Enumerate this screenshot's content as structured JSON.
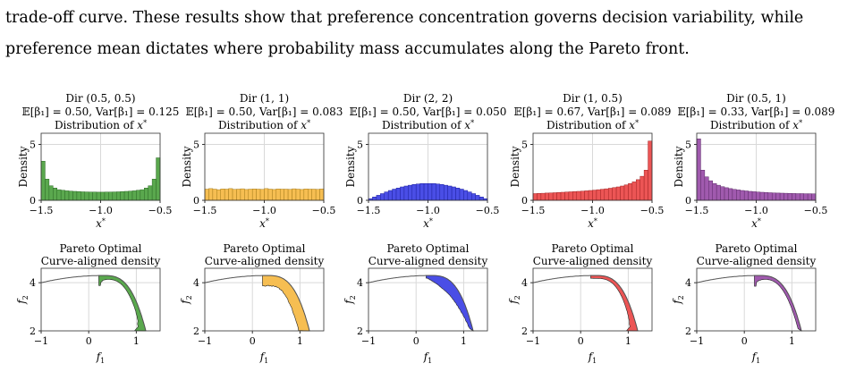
{
  "text": {
    "line1": "trade-off curve. These results show that preference concentration governs decision variability, while",
    "line2": "preference mean dictates where probability mass accumulates along the Pareto front."
  },
  "panels": [
    {
      "dist": "Dir (0.5, 0.5)",
      "stats": "𝔼[β₁] = 0.50, Var[β₁] = 0.125",
      "color": "#5aa84e",
      "edge": "#2e6b27"
    },
    {
      "dist": "Dir (1, 1)",
      "stats": "𝔼[β₁] = 0.50, Var[β₁] = 0.083",
      "color": "#f6be52",
      "edge": "#a57c1c"
    },
    {
      "dist": "Dir (2, 2)",
      "stats": "𝔼[β₁] = 0.50, Var[β₁] = 0.050",
      "color": "#4a4ee6",
      "edge": "#1f22a0"
    },
    {
      "dist": "Dir (1, 0.5)",
      "stats": "𝔼[β₁] = 0.67, Var[β₁] = 0.089",
      "color": "#ec5555",
      "edge": "#a12424"
    },
    {
      "dist": "Dir (0.5, 1)",
      "stats": "𝔼[β₁] = 0.33, Var[β₁] = 0.089",
      "color": "#a05aae",
      "edge": "#5e2c6a"
    }
  ],
  "labels": {
    "hist_title": "Distribution of x*",
    "hist_ylabel": "Density",
    "hist_xlabel": "x*",
    "pareto_title1": "Pareto Optimal",
    "pareto_title2": "Curve-aligned density",
    "pareto_xlabel": "f1",
    "pareto_ylabel": "f2"
  },
  "chart_data": [
    {
      "type": "bar",
      "title": "Distribution of x*",
      "xlabel": "x*",
      "ylabel": "Density",
      "xlim": [
        -1.5,
        -0.5
      ],
      "ylim": [
        0,
        6
      ],
      "xticks": [
        -1.5,
        -1.0,
        -0.5
      ],
      "yticks": [
        0,
        5
      ],
      "series": [
        {
          "name": "Dir (0.5, 0.5)",
          "values": [
            3.5,
            1.9,
            1.3,
            1.1,
            0.95,
            0.9,
            0.85,
            0.82,
            0.8,
            0.78,
            0.76,
            0.75,
            0.74,
            0.74,
            0.73,
            0.73,
            0.74,
            0.74,
            0.75,
            0.76,
            0.78,
            0.8,
            0.82,
            0.85,
            0.9,
            0.95,
            1.1,
            1.3,
            1.9,
            3.8
          ]
        },
        {
          "name": "Dir (1, 1)",
          "values": [
            1.0,
            1.05,
            1.0,
            0.95,
            1.02,
            1.0,
            1.05,
            0.98,
            1.0,
            1.03,
            0.97,
            1.0,
            1.02,
            1.0,
            0.98,
            1.05,
            1.0,
            0.97,
            1.02,
            1.0,
            1.0,
            0.98,
            1.03,
            1.0,
            0.97,
            1.02,
            1.0,
            1.0,
            0.98,
            1.02
          ]
        },
        {
          "name": "Dir (2, 2)",
          "values": [
            0.15,
            0.3,
            0.45,
            0.6,
            0.75,
            0.88,
            1.0,
            1.1,
            1.2,
            1.28,
            1.35,
            1.42,
            1.46,
            1.5,
            1.5,
            1.5,
            1.5,
            1.46,
            1.42,
            1.35,
            1.28,
            1.2,
            1.1,
            1.0,
            0.88,
            0.75,
            0.6,
            0.45,
            0.3,
            0.15
          ]
        },
        {
          "name": "Dir (1, 0.5)",
          "values": [
            0.6,
            0.62,
            0.63,
            0.65,
            0.66,
            0.68,
            0.7,
            0.72,
            0.74,
            0.76,
            0.78,
            0.8,
            0.82,
            0.85,
            0.88,
            0.91,
            0.95,
            0.99,
            1.03,
            1.08,
            1.14,
            1.2,
            1.28,
            1.38,
            1.5,
            1.65,
            1.85,
            2.15,
            2.7,
            5.3
          ]
        },
        {
          "name": "Dir (0.5, 1)",
          "values": [
            5.5,
            2.7,
            2.1,
            1.75,
            1.5,
            1.35,
            1.22,
            1.13,
            1.05,
            0.98,
            0.93,
            0.88,
            0.84,
            0.8,
            0.77,
            0.74,
            0.72,
            0.7,
            0.68,
            0.66,
            0.65,
            0.64,
            0.63,
            0.62,
            0.61,
            0.6,
            0.6,
            0.59,
            0.59,
            0.58
          ]
        }
      ]
    },
    {
      "type": "area",
      "title": "Pareto Optimal Curve-aligned density",
      "xlabel": "f1",
      "ylabel": "f2",
      "xlim": [
        -1,
        1.5
      ],
      "ylim": [
        2,
        4.6
      ],
      "xticks": [
        -1,
        0,
        1
      ],
      "yticks": [
        2,
        4
      ]
    }
  ]
}
